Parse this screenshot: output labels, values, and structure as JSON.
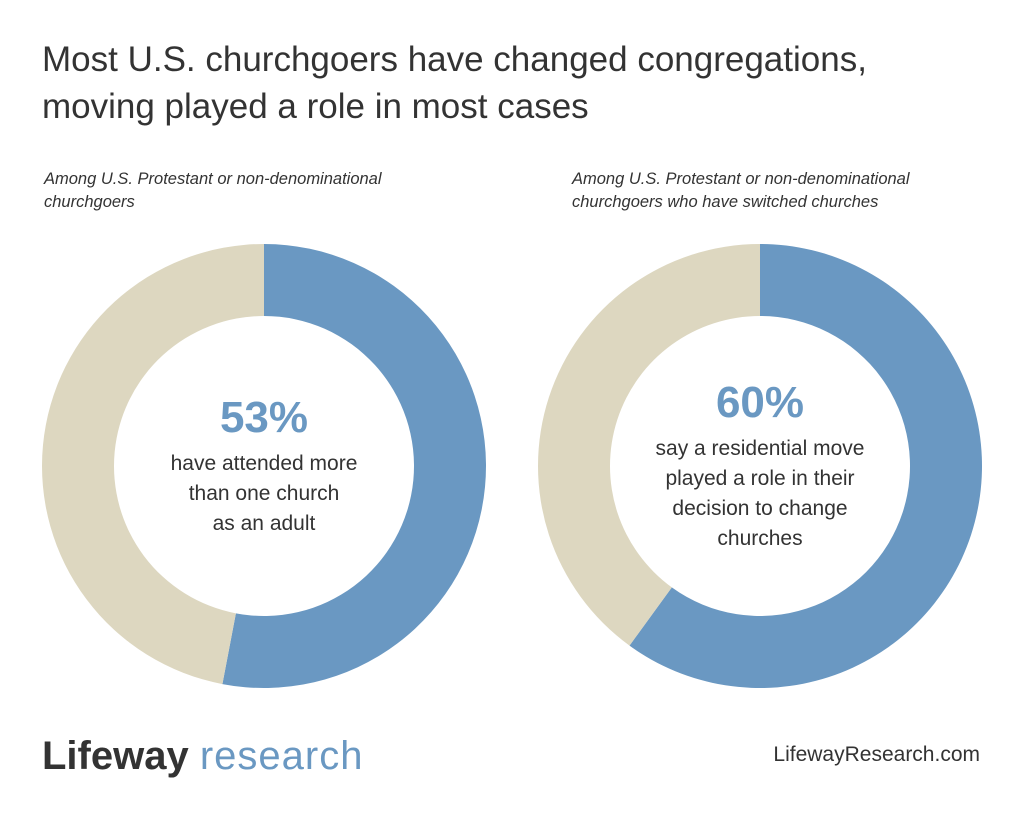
{
  "title": {
    "line1": "Most U.S. churchgoers have changed congregations,",
    "line2": "moving played a role in most cases"
  },
  "colors": {
    "primary": "#6a98c2",
    "remainder": "#ddd7c0",
    "text": "#333333"
  },
  "chart_data": [
    {
      "type": "pie",
      "subtitle": [
        "Among U.S. Protestant or non-denominational",
        "churchgoers"
      ],
      "value": 53,
      "label": "53%",
      "description": [
        "have attended more",
        "than one church",
        "as an adult"
      ],
      "slices": [
        {
          "value": 53,
          "color": "#6a98c2"
        },
        {
          "value": 47,
          "color": "#ddd7c0"
        }
      ]
    },
    {
      "type": "pie",
      "subtitle": [
        "Among U.S. Protestant or non-denominational",
        "churchgoers who have switched churches"
      ],
      "value": 60,
      "label": "60%",
      "description": [
        "say a residential move",
        "played a role in their",
        "decision to change",
        "churches"
      ],
      "slices": [
        {
          "value": 60,
          "color": "#6a98c2"
        },
        {
          "value": 40,
          "color": "#ddd7c0"
        }
      ]
    }
  ],
  "footer": {
    "logo_part1": "Lifeway",
    "logo_part2": "research",
    "website": "LifewayResearch.com"
  }
}
